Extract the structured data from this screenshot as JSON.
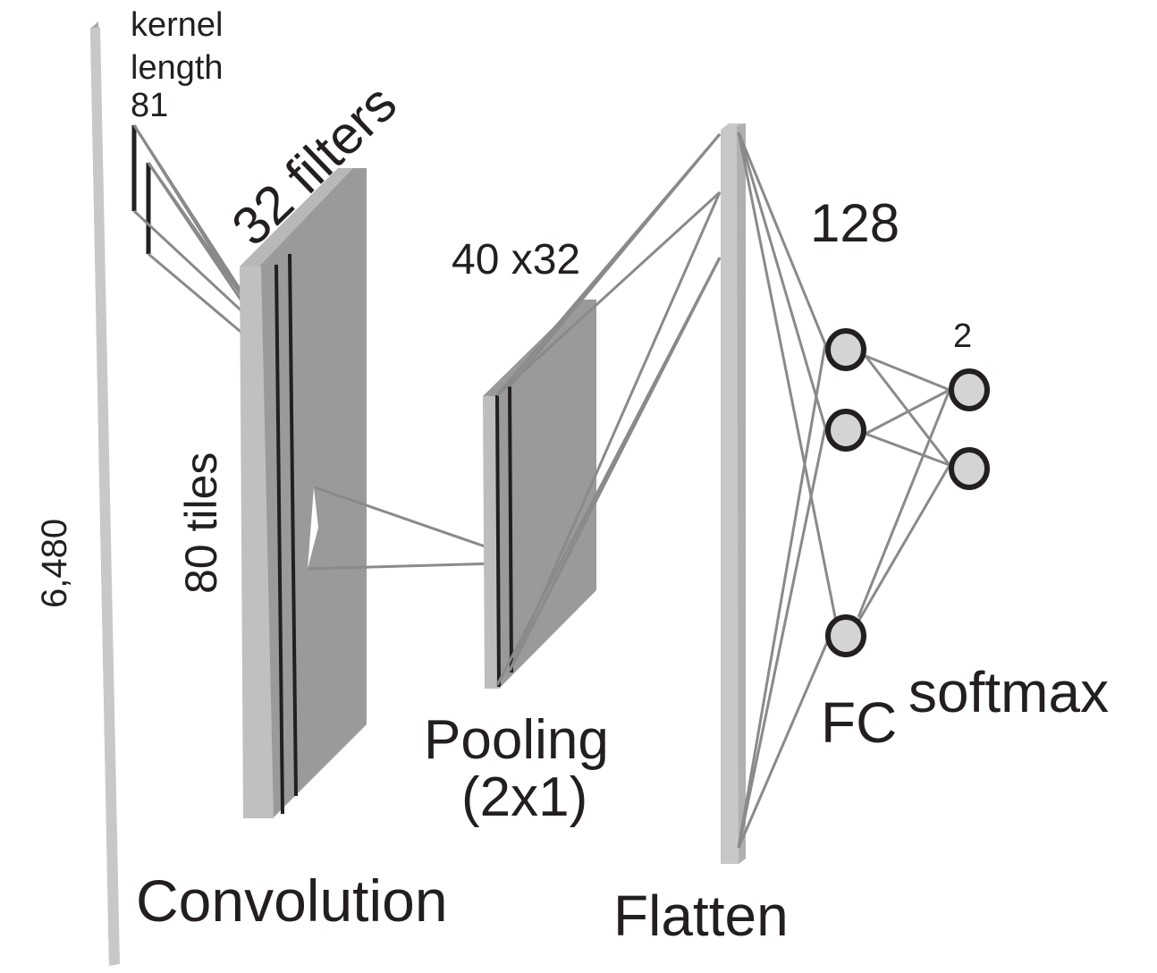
{
  "labels": {
    "kernel_line1": "kernel",
    "kernel_line2": "length",
    "kernel_value": "81",
    "filters": "32 filters",
    "input_size": "6,480",
    "tiles": "80 tiles",
    "conv": "Convolution",
    "pool_size": "40 x32",
    "pool_line1": "Pooling",
    "pool_line2": "(2x1)",
    "flatten": "Flatten",
    "fc_units": "128",
    "softmax_units": "2",
    "fc": "FC",
    "softmax": "softmax"
  },
  "colors": {
    "text": "#231f20",
    "light_bar": "#c8c8c8",
    "dark_block": "#9a9a9a",
    "connection": "#8a8a8a",
    "node_fill": "#d4d4d4"
  },
  "diagram": {
    "layers": [
      "input",
      "convolution",
      "pooling",
      "flatten",
      "fc",
      "softmax"
    ],
    "fc_nodes_shown": 3,
    "softmax_nodes": 2
  }
}
